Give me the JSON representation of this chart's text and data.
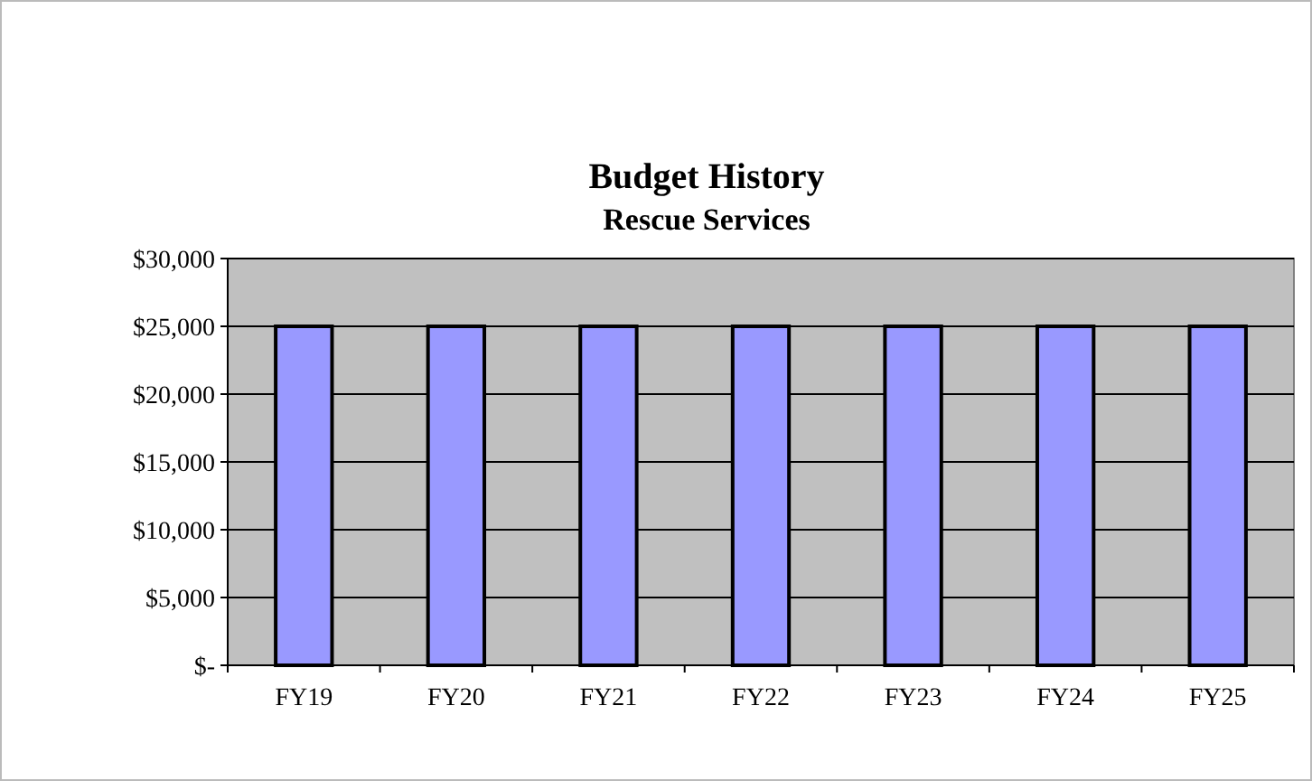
{
  "chart_data": {
    "type": "bar",
    "title": "Budget History",
    "subtitle": "Rescue Services",
    "categories": [
      "FY19",
      "FY20",
      "FY21",
      "FY22",
      "FY23",
      "FY24",
      "FY25"
    ],
    "values": [
      25000,
      25000,
      25000,
      25000,
      25000,
      25000,
      25000
    ],
    "color": "#9999ff",
    "ylim": [
      0,
      30000
    ],
    "yticks": [
      {
        "value": 0,
        "label": "$-"
      },
      {
        "value": 5000,
        "label": "$5,000"
      },
      {
        "value": 10000,
        "label": "$10,000"
      },
      {
        "value": 15000,
        "label": "$15,000"
      },
      {
        "value": 20000,
        "label": "$20,000"
      },
      {
        "value": 25000,
        "label": "$25,000"
      },
      {
        "value": 30000,
        "label": "$30,000"
      }
    ],
    "grid": "y"
  }
}
